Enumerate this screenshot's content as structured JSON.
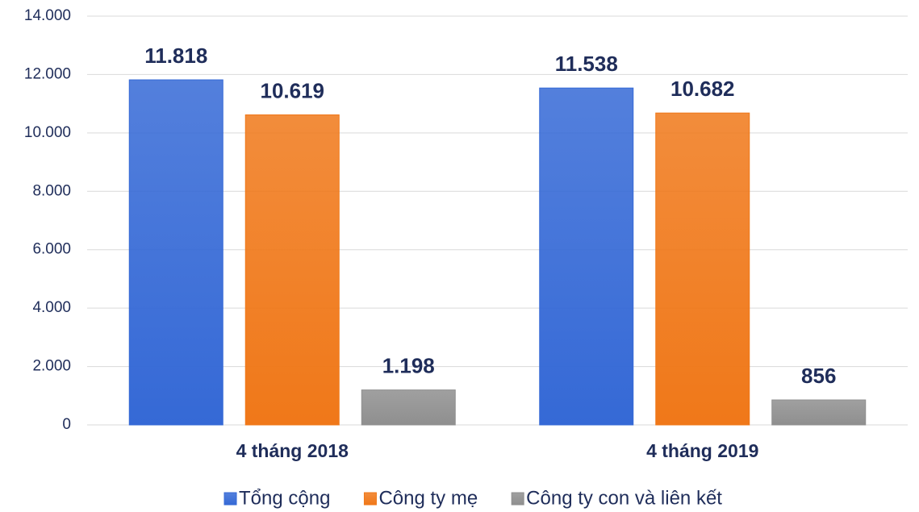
{
  "chart_data": {
    "type": "bar",
    "categories": [
      "4 tháng 2018",
      "4 tháng 2019"
    ],
    "series": [
      {
        "name": "Tổng cộng",
        "color": "#3569d6",
        "values": [
          11818,
          11538
        ],
        "value_labels": [
          "11.818",
          "11.538"
        ]
      },
      {
        "name": "Công ty mẹ",
        "color": "#f07819",
        "values": [
          10619,
          10682
        ],
        "value_labels": [
          "10.619",
          "10.682"
        ]
      },
      {
        "name": "Công ty con và liên kết",
        "color": "#8f8f8f",
        "values": [
          1198,
          856
        ],
        "value_labels": [
          "1.198",
          "856"
        ]
      }
    ],
    "ylim": [
      0,
      14000
    ],
    "yticks": [
      0,
      {
        "value": 2000,
        "label": "2.000"
      },
      {
        "value": 4000,
        "label": "4.000"
      },
      {
        "value": 6000,
        "label": "6.000"
      },
      {
        "value": 8000,
        "label": "8.000"
      },
      {
        "value": 10000,
        "label": "10.000"
      },
      {
        "value": 12000,
        "label": "12.000"
      },
      {
        "value": 14000,
        "label": "14.000"
      }
    ],
    "grid": true,
    "legend": "bottom"
  }
}
